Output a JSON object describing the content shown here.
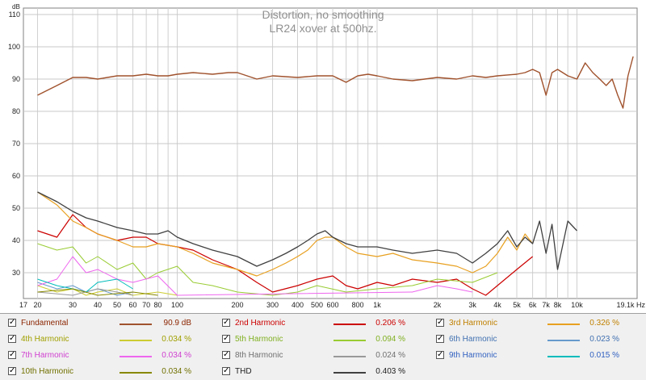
{
  "chart_data": {
    "type": "line",
    "title": "Distortion, no smoothing",
    "subtitle": "LR24 xover at 500hz.",
    "ylabel": "dB",
    "xlabel": "Hz",
    "x_scale": "log",
    "xlim": [
      17,
      20000
    ],
    "ylim": [
      22,
      112
    ],
    "grid": true,
    "y_ticks": [
      30,
      40,
      50,
      60,
      70,
      80,
      90,
      100,
      110
    ],
    "x_ticks": [
      {
        "f": 17,
        "label": "17"
      },
      {
        "f": 20,
        "label": "20"
      },
      {
        "f": 30,
        "label": "30"
      },
      {
        "f": 40,
        "label": "40"
      },
      {
        "f": 50,
        "label": "50"
      },
      {
        "f": 60,
        "label": "60"
      },
      {
        "f": 70,
        "label": "70"
      },
      {
        "f": 80,
        "label": "80"
      },
      {
        "f": 100,
        "label": "100"
      },
      {
        "f": 200,
        "label": "200"
      },
      {
        "f": 300,
        "label": "300"
      },
      {
        "f": 400,
        "label": "400"
      },
      {
        "f": 500,
        "label": "500"
      },
      {
        "f": 600,
        "label": "600"
      },
      {
        "f": 800,
        "label": "800"
      },
      {
        "f": 1000,
        "label": "1k"
      },
      {
        "f": 2000,
        "label": "2k"
      },
      {
        "f": 3000,
        "label": "3k"
      },
      {
        "f": 4000,
        "label": "4k"
      },
      {
        "f": 5000,
        "label": "5k"
      },
      {
        "f": 6000,
        "label": "6k"
      },
      {
        "f": 7000,
        "label": "7k"
      },
      {
        "f": 8000,
        "label": "8k"
      },
      {
        "f": 10000,
        "label": "10k"
      },
      {
        "f": 19100,
        "label": "19.1k Hz"
      }
    ],
    "series": [
      {
        "name": "Fundamental",
        "color": "#a0522d",
        "width": 1.4,
        "x": [
          20,
          25,
          30,
          35,
          40,
          50,
          60,
          70,
          80,
          90,
          100,
          120,
          150,
          180,
          200,
          250,
          300,
          400,
          500,
          600,
          700,
          800,
          900,
          1000,
          1200,
          1500,
          2000,
          2500,
          3000,
          3500,
          4000,
          5000,
          5500,
          6000,
          6500,
          7000,
          7500,
          8000,
          9000,
          10000,
          11000,
          12000,
          13000,
          14000,
          15000,
          16000,
          17000,
          18000,
          19100
        ],
        "y": [
          85,
          88,
          90.5,
          90.5,
          90,
          91,
          91,
          91.5,
          91,
          91,
          91.5,
          92,
          91.5,
          92,
          92,
          90,
          91,
          90.5,
          91,
          91,
          89,
          91,
          91.5,
          91,
          90,
          89.5,
          90.5,
          90,
          91,
          90.5,
          91,
          91.5,
          92,
          93,
          92,
          85,
          92,
          93,
          91,
          90,
          95,
          92,
          90,
          88,
          90,
          85,
          81,
          91,
          97
        ]
      },
      {
        "name": "2nd Harmonic",
        "color": "#cc0000",
        "width": 1.2,
        "x": [
          20,
          25,
          30,
          35,
          40,
          50,
          60,
          70,
          80,
          100,
          120,
          150,
          200,
          250,
          300,
          400,
          500,
          600,
          700,
          800,
          1000,
          1200,
          1500,
          2000,
          2500,
          3000,
          3500,
          4000,
          5000,
          6000
        ],
        "y": [
          43,
          41,
          48,
          44,
          42,
          40,
          41,
          41,
          39,
          38,
          37,
          34,
          31,
          27,
          24,
          26,
          28,
          29,
          26,
          25,
          27,
          26,
          28,
          27,
          28,
          25,
          23,
          26,
          31,
          35
        ]
      },
      {
        "name": "3rd Harmonic",
        "color": "#e8a020",
        "width": 1.2,
        "x": [
          20,
          25,
          30,
          35,
          40,
          50,
          60,
          70,
          80,
          100,
          120,
          150,
          200,
          250,
          300,
          350,
          400,
          450,
          500,
          550,
          600,
          700,
          800,
          1000,
          1200,
          1500,
          2000,
          2500,
          3000,
          3500,
          4000,
          4500,
          5000,
          5500,
          6000
        ],
        "y": [
          55,
          51,
          46,
          44,
          42,
          40,
          38,
          38,
          39,
          38,
          36,
          33,
          31,
          29,
          31,
          33,
          35,
          37,
          40,
          41,
          41,
          38,
          36,
          35,
          36,
          34,
          33,
          32,
          30,
          32,
          36,
          41,
          37,
          42,
          39
        ]
      },
      {
        "name": "4th Harmonic",
        "color": "#cccc33",
        "width": 1.0,
        "x": [
          20,
          25,
          30,
          35,
          40,
          50,
          60,
          80,
          100
        ],
        "y": [
          26,
          24,
          25,
          23,
          24,
          25,
          23,
          24,
          23
        ]
      },
      {
        "name": "5th Harmonic",
        "color": "#99cc33",
        "width": 1.0,
        "x": [
          20,
          25,
          30,
          35,
          40,
          50,
          60,
          70,
          80,
          100,
          120,
          150,
          200,
          300,
          400,
          500,
          700,
          1000,
          1500,
          2000,
          3000,
          4000
        ],
        "y": [
          39,
          37,
          38,
          33,
          35,
          31,
          33,
          28,
          30,
          32,
          27,
          26,
          24,
          23,
          24,
          26,
          24,
          25,
          26,
          28,
          27,
          30
        ]
      },
      {
        "name": "6th Harmonic",
        "color": "#6699cc",
        "width": 1.0,
        "x": [
          20,
          25,
          30,
          35,
          40,
          50,
          60
        ],
        "y": [
          27,
          25,
          26,
          24,
          25,
          23,
          24
        ]
      },
      {
        "name": "7th Harmonic",
        "color": "#ee66ee",
        "width": 1.0,
        "x": [
          20,
          25,
          30,
          35,
          40,
          50,
          60,
          80,
          100,
          1500,
          2000,
          2500,
          3000
        ],
        "y": [
          26,
          28,
          35,
          30,
          31,
          28,
          27,
          29,
          23,
          24,
          26,
          25,
          24
        ]
      },
      {
        "name": "8th Harmonic",
        "color": "#999999",
        "width": 1.0,
        "x": [
          20,
          30,
          40,
          50,
          60
        ],
        "y": [
          24,
          23,
          25,
          24,
          23
        ]
      },
      {
        "name": "9th Harmonic",
        "color": "#00bbbb",
        "width": 1.0,
        "x": [
          20,
          25,
          30,
          35,
          40,
          50,
          60
        ],
        "y": [
          28,
          26,
          25,
          24,
          27,
          28,
          25
        ]
      },
      {
        "name": "10th Harmonic",
        "color": "#888800",
        "width": 1.0,
        "x": [
          20,
          30,
          40,
          60,
          80
        ],
        "y": [
          24,
          25,
          23,
          24,
          23
        ]
      },
      {
        "name": "THD",
        "color": "#404040",
        "width": 1.3,
        "x": [
          20,
          25,
          30,
          35,
          40,
          50,
          60,
          70,
          80,
          90,
          100,
          120,
          150,
          200,
          250,
          300,
          350,
          400,
          450,
          500,
          550,
          600,
          700,
          800,
          1000,
          1200,
          1500,
          2000,
          2500,
          3000,
          3500,
          4000,
          4500,
          5000,
          5500,
          6000,
          6500,
          7000,
          7500,
          8000,
          9000,
          10000
        ],
        "y": [
          55,
          52,
          49,
          47,
          46,
          44,
          43,
          42,
          42,
          43,
          41,
          39,
          37,
          35,
          32,
          34,
          36,
          38,
          40,
          42,
          43,
          41,
          39,
          38,
          38,
          37,
          36,
          37,
          36,
          33,
          36,
          39,
          43,
          38,
          41,
          39,
          46,
          36,
          45,
          31,
          46,
          43
        ]
      }
    ]
  },
  "legend": {
    "rows": [
      [
        {
          "label": "Fundamental",
          "value": "90.9 dB",
          "color": "#a0522d",
          "label_color": "#8b2500"
        },
        {
          "label": "2nd Harmonic",
          "value": "0.206 %",
          "color": "#cc0000",
          "label_color": "#cc0000"
        },
        {
          "label": "3rd Harmonic",
          "value": "0.326 %",
          "color": "#e8a020",
          "label_color": "#c08000"
        }
      ],
      [
        {
          "label": "4th Harmonic",
          "value": "0.034 %",
          "color": "#cccc33",
          "label_color": "#a0a000"
        },
        {
          "label": "5th Harmonic",
          "value": "0.094 %",
          "color": "#99cc33",
          "label_color": "#80b020"
        },
        {
          "label": "6th Harmonic",
          "value": "0.023 %",
          "color": "#6699cc",
          "label_color": "#4070b0"
        }
      ],
      [
        {
          "label": "7th Harmonic",
          "value": "0.034 %",
          "color": "#ee66ee",
          "label_color": "#d040d0"
        },
        {
          "label": "8th Harmonic",
          "value": "0.024 %",
          "color": "#999999",
          "label_color": "#707070"
        },
        {
          "label": "9th Harmonic",
          "value": "0.015 %",
          "color": "#00bbbb",
          "label_color": "#3060c0"
        }
      ],
      [
        {
          "label": "10th Harmonic",
          "value": "0.034 %",
          "color": "#888800",
          "label_color": "#707000"
        },
        {
          "label": "THD",
          "value": "0.403 %",
          "color": "#404040",
          "label_color": "#202020"
        }
      ]
    ],
    "checkbox_mark": "✓"
  }
}
